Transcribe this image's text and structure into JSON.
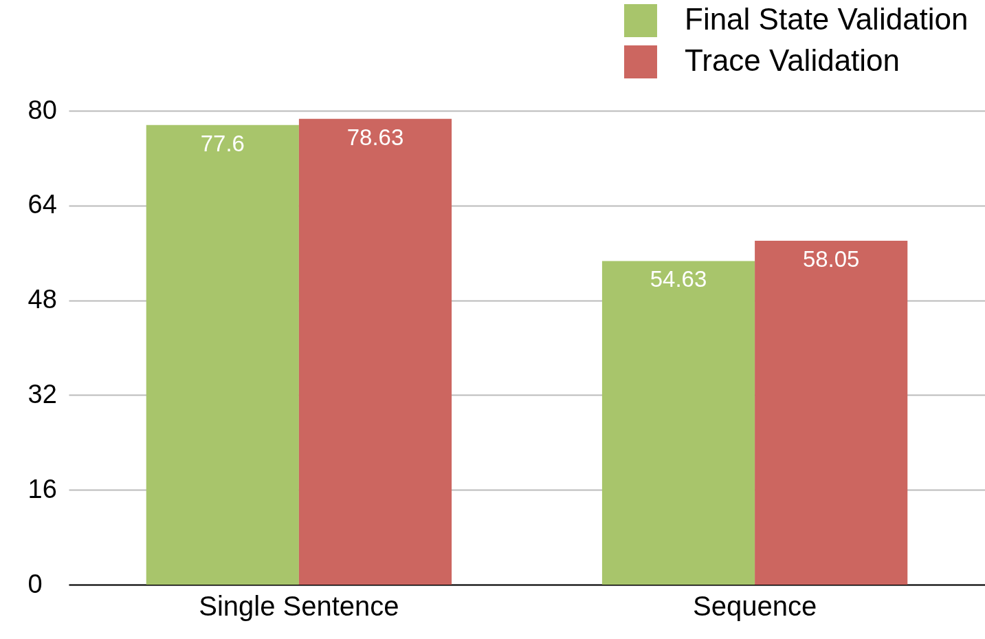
{
  "chart_data": {
    "type": "bar",
    "categories": [
      "Single Sentence",
      "Sequence"
    ],
    "series": [
      {
        "name": "Final State Validation",
        "color": "#a8c56b",
        "values": [
          77.6,
          54.63
        ]
      },
      {
        "name": "Trace Validation",
        "color": "#cc6660",
        "values": [
          78.63,
          58.05
        ]
      }
    ],
    "ylim": [
      0,
      80
    ],
    "yticks": [
      0,
      16,
      32,
      48,
      64,
      80
    ],
    "grid": "y",
    "legend": "top right",
    "data_labels": true
  }
}
